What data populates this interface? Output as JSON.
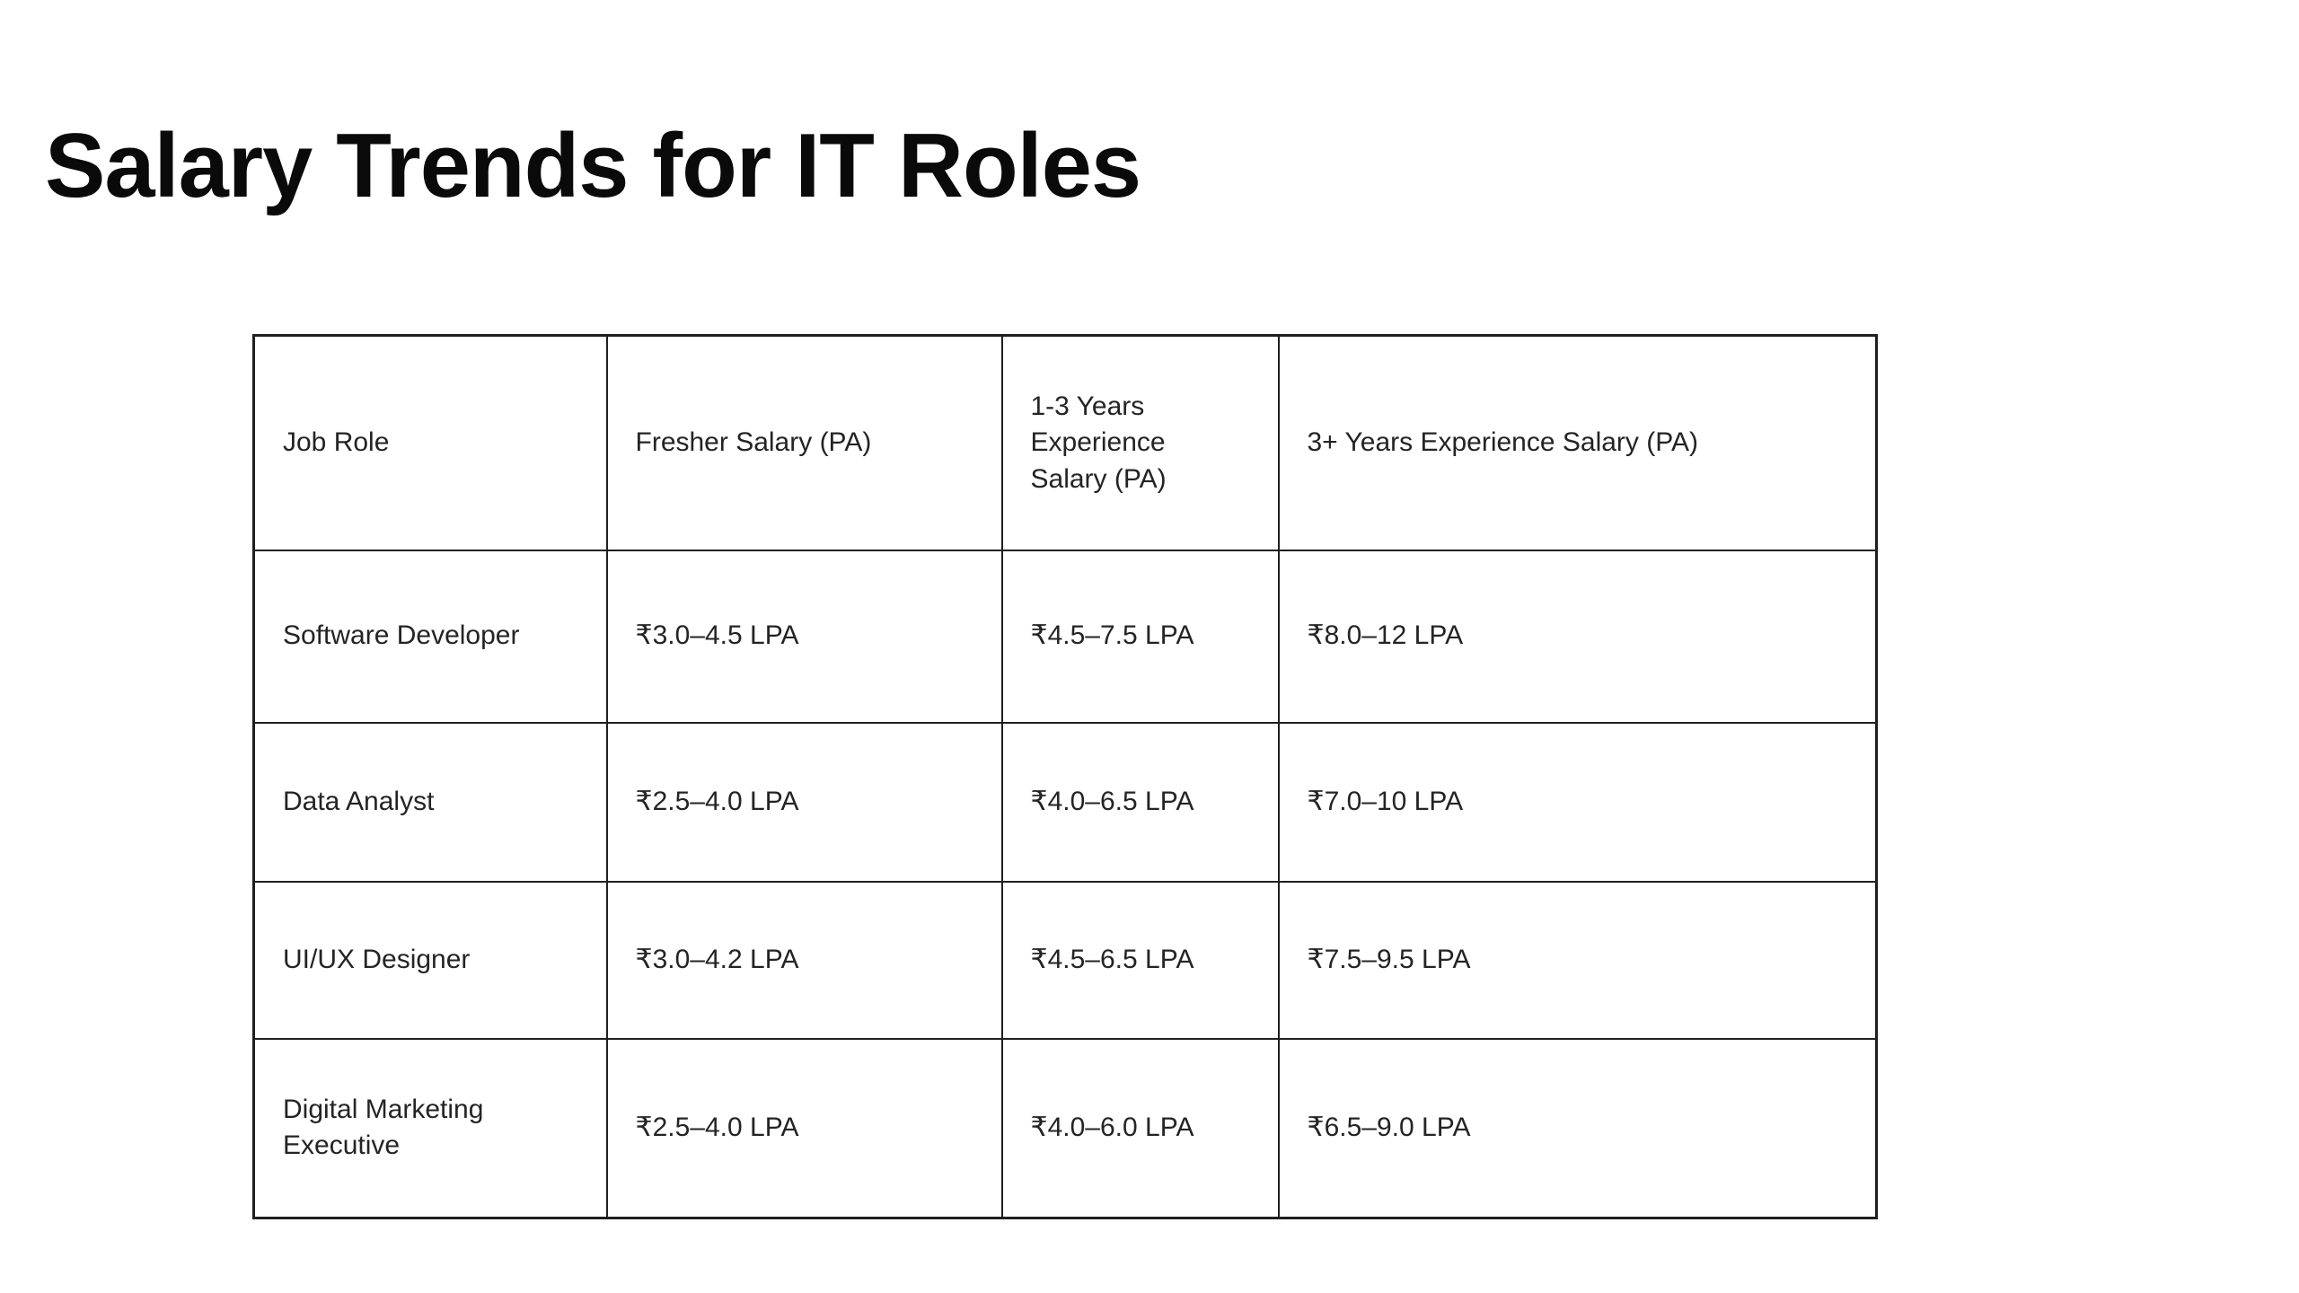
{
  "page": {
    "title": "Salary Trends for IT Roles",
    "background_color": "#ffffff",
    "text_color": "#242424",
    "title_color": "#0a0a0a",
    "border_color": "#1f1f1f"
  },
  "table": {
    "headers": [
      "Job Role",
      "Fresher Salary (PA)",
      "1-3 Years Experience Salary (PA)",
      "3+ Years Experience Salary (PA)"
    ],
    "rows": [
      [
        "Software Developer",
        "₹3.0–4.5 LPA",
        "₹4.5–7.5 LPA",
        "₹8.0–12 LPA"
      ],
      [
        "Data Analyst",
        "₹2.5–4.0 LPA",
        "₹4.0–6.5 LPA",
        "₹7.0–10 LPA"
      ],
      [
        "UI/UX Designer",
        "₹3.0–4.2 LPA",
        "₹4.5–6.5 LPA",
        "₹7.5–9.5 LPA"
      ],
      [
        "Digital Marketing Executive",
        "₹2.5–4.0 LPA",
        "₹4.0–6.0 LPA",
        "₹6.5–9.0 LPA"
      ]
    ]
  }
}
